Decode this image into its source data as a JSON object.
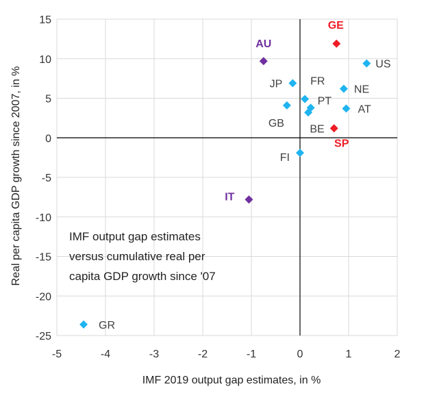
{
  "chart_data": {
    "type": "scatter",
    "title": "",
    "xlabel": "IMF 2019 output gap estimates, in %",
    "ylabel": "Real per capita GDP growth since 2007, in %",
    "xlim": [
      -5,
      2
    ],
    "ylim": [
      -25,
      15
    ],
    "xticks": [
      -5,
      -4,
      -3,
      -2,
      -1,
      0,
      1,
      2
    ],
    "yticks": [
      -25,
      -20,
      -15,
      -10,
      -5,
      0,
      5,
      10,
      15
    ],
    "grid": true,
    "annotation": [
      "IMF output gap estimates",
      "versus cumulative real per",
      "capita GDP growth since '07"
    ],
    "colors": {
      "blue": "#1fb4f0",
      "red": "#ee1c25",
      "purple": "#7030a0",
      "grid": "#d9d9d9",
      "axis": "#000000"
    },
    "points": [
      {
        "label": "GE",
        "x": 0.75,
        "y": 11.9,
        "color": "red",
        "bold": true
      },
      {
        "label": "AU",
        "x": -0.75,
        "y": 9.7,
        "color": "purple",
        "bold": true
      },
      {
        "label": "US",
        "x": 1.37,
        "y": 9.4,
        "color": "blue",
        "bold": false
      },
      {
        "label": "JP",
        "x": -0.15,
        "y": 6.9,
        "color": "blue",
        "bold": false
      },
      {
        "label": "NE",
        "x": 0.9,
        "y": 6.2,
        "color": "blue",
        "bold": false
      },
      {
        "label": "FR",
        "x": 0.1,
        "y": 4.9,
        "color": "blue",
        "bold": false
      },
      {
        "label": "GB",
        "x": -0.27,
        "y": 4.1,
        "color": "blue",
        "bold": false
      },
      {
        "label": "PT",
        "x": 0.22,
        "y": 3.8,
        "color": "blue",
        "bold": false
      },
      {
        "label": "",
        "x": 0.17,
        "y": 3.2,
        "color": "blue",
        "bold": false
      },
      {
        "label": "AT",
        "x": 0.95,
        "y": 3.7,
        "color": "blue",
        "bold": false
      },
      {
        "label": "BE",
        "x": 0.7,
        "y": 1.2,
        "color": "red",
        "bold": false
      },
      {
        "label": "SP",
        "x": 0.7,
        "y": 1.2,
        "color": "red",
        "bold": true
      },
      {
        "label": "FI",
        "x": 0.0,
        "y": -1.9,
        "color": "blue",
        "bold": false
      },
      {
        "label": "IT",
        "x": -1.05,
        "y": -7.8,
        "color": "purple",
        "bold": true
      },
      {
        "label": "GR",
        "x": -4.45,
        "y": -23.6,
        "color": "blue",
        "bold": false
      }
    ]
  }
}
